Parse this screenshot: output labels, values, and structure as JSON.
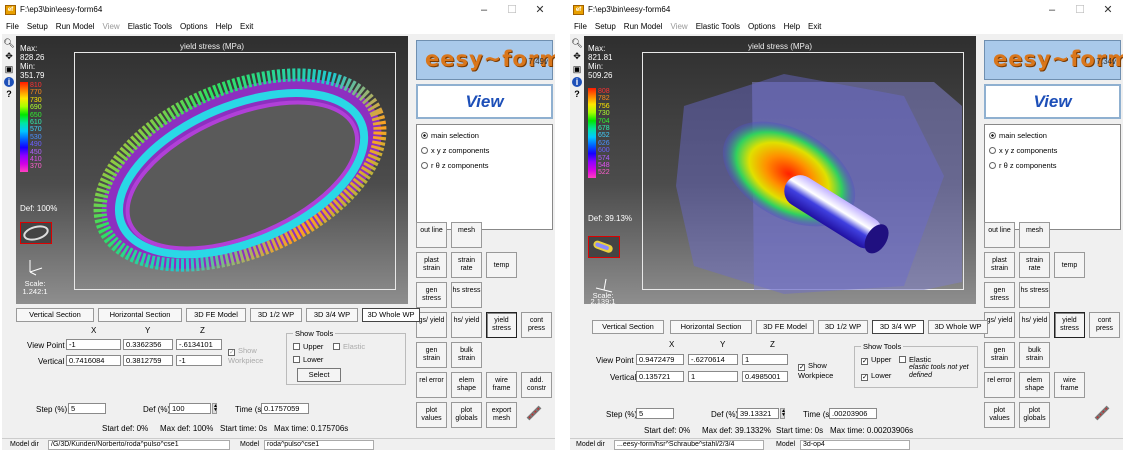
{
  "window_left": {
    "title": "F:\\ep3\\bin\\eesy-form64",
    "menu": [
      "File",
      "Setup",
      "Run Model",
      "View",
      "Elastic Tools",
      "Options",
      "Help",
      "Exit"
    ],
    "viewport": {
      "title": "yield stress (MPa)",
      "max_label": "Max:",
      "max_value": "828.26",
      "min_label": "Min:",
      "min_value": "351.79",
      "legend_ticks": [
        "810",
        "770",
        "730",
        "690",
        "650",
        "610",
        "570",
        "530",
        "490",
        "450",
        "410",
        "370"
      ],
      "def_label": "Def: 100%",
      "scale_label": "Scale:",
      "scale_value": "1.242:1"
    },
    "logo": {
      "text": "eesy~form",
      "version": "7.49v"
    },
    "view_label": "View",
    "selection": [
      "main selection",
      "x y z components",
      "r θ z components"
    ],
    "buttons": [
      [
        "out line",
        "mesh",
        "",
        ""
      ],
      [
        "plast strain",
        "strain rate",
        "temp",
        ""
      ],
      [
        "gen stress",
        "hs stress",
        "",
        ""
      ],
      [
        "gs/ yield",
        "hs/ yield",
        "yield stress",
        "cont press"
      ],
      [
        "gen strain",
        "bulk strain",
        "",
        ""
      ],
      [
        "rel error",
        "elem shape",
        "wire frame",
        "add. constr"
      ],
      [
        "plot values",
        "plot globals",
        "export mesh",
        ""
      ]
    ],
    "tabs": [
      "Vertical Section",
      "Horizontal Section",
      "3D FE Model",
      "3D 1/2 WP",
      "3D 3/4 WP",
      "3D Whole WP"
    ],
    "selected_tab": "3D Whole WP",
    "coords": {
      "x": "X",
      "y": "Y",
      "z": "Z",
      "view_point_label": "View Point",
      "vertical_label": "Vertical",
      "view_point": [
        "-1",
        "0.3362356",
        "-.6134101"
      ],
      "vertical": [
        "0.7416084",
        "0.3812759",
        "-1"
      ]
    },
    "show_workpiece": "Show Workpiece",
    "show_tools": {
      "title": "Show Tools",
      "upper": "Upper",
      "elastic": "Elastic",
      "lower": "Lower",
      "select": "Select"
    },
    "step_label": "Step (%)",
    "step_value": "5",
    "defp_label": "Def (%)",
    "defp_value": "100",
    "time_label": "Time (s)",
    "time_value": "0.1757059",
    "info": [
      "Start def: 0%",
      "Max def: 100%",
      "Start time: 0s",
      "Max time: 0.175706s"
    ],
    "status": {
      "model_dir_label": "Model dir",
      "model_dir": "/G/3D/Kunden/Norberto/roda^pulso^cse1",
      "model_label": "Model",
      "model": "roda^pulso^cse1"
    }
  },
  "window_right": {
    "title": "F:\\ep3\\bin\\eesy-form64",
    "menu": [
      "File",
      "Setup",
      "Run Model",
      "View",
      "Elastic Tools",
      "Options",
      "Help",
      "Exit"
    ],
    "viewport": {
      "title": "yield stress (MPa)",
      "max_label": "Max:",
      "max_value": "821.81",
      "min_label": "Min:",
      "min_value": "509.26",
      "legend_ticks": [
        "808",
        "782",
        "756",
        "730",
        "704",
        "678",
        "652",
        "626",
        "600",
        "574",
        "548",
        "522"
      ],
      "def_label": "Def: 39.13%",
      "scale_label": "Scale:",
      "scale_value": "2.139:1"
    },
    "logo": {
      "text": "eesy~form",
      "version": "7.34v"
    },
    "view_label": "View",
    "selection": [
      "main selection",
      "x y z components",
      "r θ z components"
    ],
    "buttons": [
      [
        "out line",
        "mesh",
        "",
        ""
      ],
      [
        "plast strain",
        "strain rate",
        "temp",
        ""
      ],
      [
        "gen stress",
        "hs stress",
        "",
        ""
      ],
      [
        "gs/ yield",
        "hs/ yield",
        "yield stress",
        "cont press"
      ],
      [
        "gen strain",
        "bulk strain",
        "",
        ""
      ],
      [
        "rel error",
        "elem shape",
        "wire frame",
        ""
      ],
      [
        "plot values",
        "plot globals",
        "",
        ""
      ]
    ],
    "tabs": [
      "Vertical Section",
      "Horizontal Section",
      "3D FE Model",
      "3D 1/2 WP",
      "3D 3/4 WP",
      "3D Whole WP"
    ],
    "selected_tab": "3D 3/4 WP",
    "coords": {
      "x": "X",
      "y": "Y",
      "z": "Z",
      "view_point_label": "View Point",
      "vertical_label": "Vertical",
      "view_point": [
        "0.9472479",
        "-.6270614",
        "1"
      ],
      "vertical": [
        "0.135721",
        "1",
        "0.4985001"
      ]
    },
    "show_workpiece": "Show Workpiece",
    "show_tools": {
      "title": "Show Tools",
      "upper": "Upper",
      "elastic": "Elastic",
      "lower": "Lower",
      "note": "elastic tools not yet defined"
    },
    "step_label": "Step (%)",
    "step_value": "5",
    "defp_label": "Def (%)",
    "defp_value": "39.13321",
    "time_label": "Time (s)",
    "time_value": ".00203906",
    "info": [
      "Start def: 0%",
      "Max def: 39.1332%",
      "Start time: 0s",
      "Max time: 0.00203906s"
    ],
    "status": {
      "model_dir_label": "Model dir",
      "model_dir": "...eesy-form/hsr^Schraube^stahl/2/3/4",
      "model_label": "Model",
      "model": "3d-op4"
    }
  },
  "colors": {
    "logo_orange": "#d9761b",
    "view_blue": "#1d4fb8",
    "logo_bg": "#a9c9ea"
  },
  "icons": [
    "search-icon",
    "move-icon",
    "camera-icon",
    "info-icon",
    "help-icon"
  ]
}
